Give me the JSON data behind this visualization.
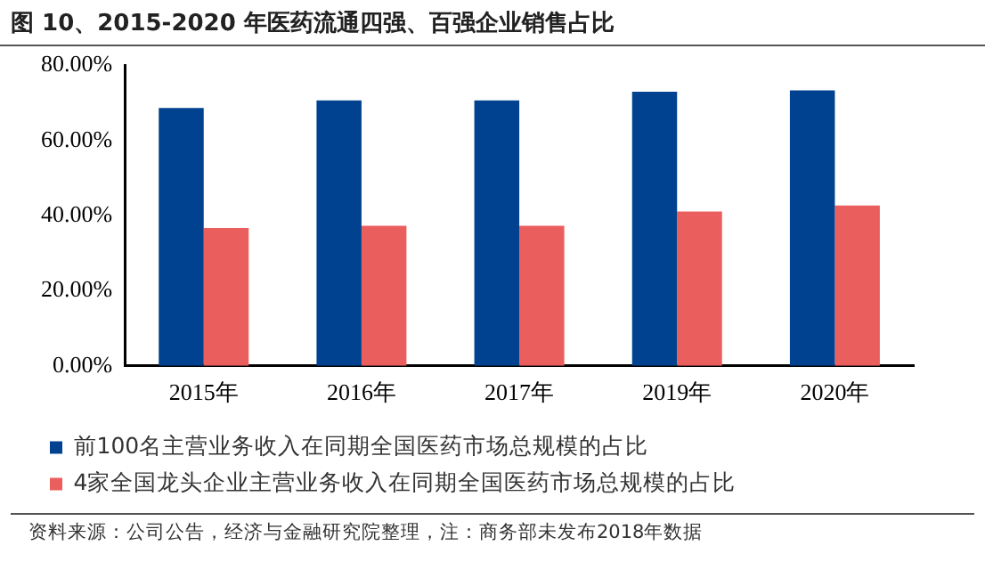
{
  "chart_data": {
    "type": "bar",
    "title": "图 10、2015-2020 年医药流通四强、百强企业销售占比",
    "categories": [
      "2015年",
      "2016年",
      "2017年",
      "2019年",
      "2020年"
    ],
    "series": [
      {
        "name": "前100名主营业务收入在同期全国医药市场总规模的占比",
        "color": "#00428f",
        "values": [
          68.7,
          70.7,
          70.7,
          73.0,
          73.4
        ]
      },
      {
        "name": "4家全国龙头企业主营业务收入在同期全国医药市场总规模的占比",
        "color": "#eb5e5e",
        "values": [
          36.7,
          37.3,
          37.3,
          41.1,
          42.7
        ]
      }
    ],
    "ylim": [
      0,
      80
    ],
    "yticks": [
      {
        "value": 0,
        "label": "0.00%"
      },
      {
        "value": 20,
        "label": "20.00%"
      },
      {
        "value": 40,
        "label": "40.00%"
      },
      {
        "value": 60,
        "label": "60.00%"
      },
      {
        "value": 80,
        "label": "80.00%"
      }
    ],
    "grid": false,
    "legend": "bottom",
    "annotations": [
      "资料来源：公司公告，经济与金融研究院整理，注：商务部未发布2018年数据"
    ]
  }
}
